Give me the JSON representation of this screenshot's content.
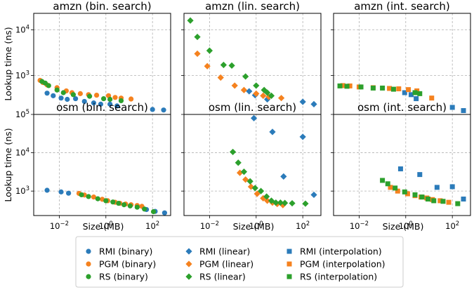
{
  "chart_data": {
    "type": "scatter",
    "xlabel": "Size (MB)",
    "ylabel": "Lookup time (ns)",
    "xscale": "log",
    "yscale": "log",
    "xlim": [
      0.0008,
      600
    ],
    "grid": true,
    "legend_position": "bottom",
    "legend_columns": 3,
    "rows": [
      {
        "ylim": [
          140,
          23000
        ],
        "yticks": [
          {
            "v": 1000,
            "label": "10",
            "exp": "3"
          },
          {
            "v": 10000,
            "label": "10",
            "exp": "4"
          }
        ]
      },
      {
        "ylim": [
          230,
          100000
        ],
        "yticks": [
          {
            "v": 1000,
            "label": "10",
            "exp": "3"
          },
          {
            "v": 10000,
            "label": "10",
            "exp": "4"
          },
          {
            "v": 100000,
            "label": "10",
            "exp": "5"
          }
        ]
      }
    ],
    "xticks": [
      {
        "v": 0.01,
        "label": "10",
        "exp": "−2"
      },
      {
        "v": 1,
        "label": "10",
        "exp": "0"
      },
      {
        "v": 100,
        "label": "10",
        "exp": "2"
      }
    ],
    "colors": {
      "RMI": "#2b7bba",
      "PGM": "#f5821f",
      "RS": "#2ca02c"
    },
    "legend": [
      {
        "label": "RMI (binary)",
        "model": "RMI",
        "marker": "circle"
      },
      {
        "label": "PGM (binary)",
        "model": "PGM",
        "marker": "circle"
      },
      {
        "label": "RS (binary)",
        "model": "RS",
        "marker": "circle"
      },
      {
        "label": "RMI (linear)",
        "model": "RMI",
        "marker": "diamond"
      },
      {
        "label": "PGM (linear)",
        "model": "PGM",
        "marker": "diamond"
      },
      {
        "label": "RS (linear)",
        "model": "RS",
        "marker": "diamond"
      },
      {
        "label": "RMI (interpolation)",
        "model": "RMI",
        "marker": "square"
      },
      {
        "label": "PGM (interpolation)",
        "model": "PGM",
        "marker": "square"
      },
      {
        "label": "RS (interpolation)",
        "model": "RS",
        "marker": "square"
      }
    ],
    "panels": [
      {
        "title": "amzn (bin. search)",
        "row": 0,
        "col": 0,
        "marker": "circle",
        "series": [
          {
            "model": "RMI",
            "points": [
              [
                0.003,
                410
              ],
              [
                0.0055,
                360
              ],
              [
                0.012,
                320
              ],
              [
                0.022,
                300
              ],
              [
                0.05,
                310
              ],
              [
                0.12,
                270
              ],
              [
                0.3,
                250
              ],
              [
                0.6,
                235
              ],
              [
                1.5,
                235
              ],
              [
                3,
                215
              ],
              [
                100,
                180
              ],
              [
                300,
                175
              ]
            ]
          },
          {
            "model": "PGM",
            "points": [
              [
                0.0015,
                780
              ],
              [
                0.002,
                700
              ],
              [
                0.003,
                620
              ],
              [
                0.008,
                540
              ],
              [
                0.02,
                460
              ],
              [
                0.035,
                420
              ],
              [
                0.08,
                400
              ],
              [
                0.18,
                380
              ],
              [
                0.4,
                370
              ],
              [
                1.3,
                360
              ],
              [
                2.5,
                330
              ],
              [
                4.5,
                320
              ],
              [
                12,
                305
              ]
            ]
          },
          {
            "model": "RS",
            "points": [
              [
                0.0018,
                740
              ],
              [
                0.0025,
                680
              ],
              [
                0.0035,
                600
              ],
              [
                0.008,
                480
              ],
              [
                0.015,
                420
              ],
              [
                0.04,
                380
              ],
              [
                0.2,
                350
              ],
              [
                0.8,
                310
              ],
              [
                1.5,
                300
              ],
              [
                4.5,
                280
              ]
            ]
          }
        ]
      },
      {
        "title": "amzn (lin. search)",
        "row": 0,
        "col": 1,
        "marker": "diamond",
        "series": [
          {
            "model": "RMI",
            "points": [
              [
                0.5,
                450
              ],
              [
                0.9,
                370
              ],
              [
                3,
                300
              ],
              [
                100,
                265
              ],
              [
                300,
                235
              ]
            ]
          },
          {
            "model": "PGM",
            "points": [
              [
                0.003,
                3000
              ],
              [
                0.008,
                1600
              ],
              [
                0.03,
                900
              ],
              [
                0.12,
                600
              ],
              [
                0.3,
                480
              ],
              [
                1,
                400
              ],
              [
                2,
                360
              ],
              [
                3.5,
                340
              ],
              [
                12,
                320
              ]
            ]
          },
          {
            "model": "RS",
            "points": [
              [
                0.0015,
                16000
              ],
              [
                0.003,
                7000
              ],
              [
                0.01,
                3500
              ],
              [
                0.04,
                1700
              ],
              [
                0.09,
                1650
              ],
              [
                0.35,
                950
              ],
              [
                1,
                600
              ],
              [
                2.2,
                480
              ],
              [
                3,
                420
              ],
              [
                4.5,
                360
              ]
            ]
          }
        ]
      },
      {
        "title": "amzn (int. search)",
        "row": 0,
        "col": 2,
        "marker": "square",
        "series": [
          {
            "model": "RMI",
            "points": [
              [
                0.9,
                420
              ],
              [
                1.7,
                380
              ],
              [
                2.8,
                310
              ],
              [
                100,
                200
              ],
              [
                300,
                170
              ]
            ]
          },
          {
            "model": "PGM",
            "points": [
              [
                0.002,
                600
              ],
              [
                0.004,
                590
              ],
              [
                0.01,
                560
              ],
              [
                0.04,
                540
              ],
              [
                0.2,
                520
              ],
              [
                0.5,
                510
              ],
              [
                1.3,
                490
              ],
              [
                3,
                460
              ],
              [
                13,
                320
              ]
            ]
          },
          {
            "model": "RS",
            "points": [
              [
                0.0015,
                590
              ],
              [
                0.003,
                580
              ],
              [
                0.012,
                560
              ],
              [
                0.04,
                530
              ],
              [
                0.1,
                530
              ],
              [
                0.3,
                500
              ],
              [
                2.5,
                420
              ],
              [
                4,
                400
              ]
            ]
          }
        ]
      },
      {
        "title": "osm (bin. search)",
        "row": 1,
        "col": 0,
        "marker": "circle",
        "series": [
          {
            "model": "RMI",
            "points": [
              [
                0.003,
                1050
              ],
              [
                0.012,
                950
              ],
              [
                0.025,
                880
              ],
              [
                55,
                330
              ],
              [
                130,
                295
              ],
              [
                330,
                270
              ]
            ]
          },
          {
            "model": "PGM",
            "points": [
              [
                0.07,
                870
              ],
              [
                0.12,
                790
              ],
              [
                0.3,
                700
              ],
              [
                0.7,
                610
              ],
              [
                1.2,
                560
              ],
              [
                2.5,
                510
              ],
              [
                4,
                480
              ],
              [
                7,
                460
              ],
              [
                12,
                440
              ],
              [
                22,
                420
              ],
              [
                35,
                400
              ]
            ]
          },
          {
            "model": "RS",
            "points": [
              [
                0.09,
                800
              ],
              [
                0.18,
                720
              ],
              [
                0.45,
                630
              ],
              [
                1,
                560
              ],
              [
                2,
                520
              ],
              [
                3.5,
                480
              ],
              [
                6,
                440
              ],
              [
                11,
                410
              ],
              [
                22,
                380
              ],
              [
                45,
                340
              ],
              [
                110,
                290
              ]
            ]
          }
        ]
      },
      {
        "title": "osm (lin. search)",
        "row": 1,
        "col": 1,
        "marker": "diamond",
        "series": [
          {
            "model": "RMI",
            "points": [
              [
                0.8,
                80000
              ],
              [
                5,
                35000
              ],
              [
                100,
                26000
              ],
              [
                15,
                2400
              ],
              [
                300,
                800
              ]
            ]
          },
          {
            "model": "PGM",
            "points": [
              [
                0.2,
                3000
              ],
              [
                0.35,
                2000
              ],
              [
                0.6,
                1300
              ],
              [
                1.1,
                850
              ],
              [
                2,
                650
              ],
              [
                3,
                560
              ],
              [
                5,
                500
              ],
              [
                8,
                460
              ],
              [
                14,
                430
              ]
            ]
          },
          {
            "model": "RS",
            "points": [
              [
                0.1,
                10500
              ],
              [
                0.17,
                5500
              ],
              [
                0.3,
                3200
              ],
              [
                0.55,
                1800
              ],
              [
                0.9,
                1200
              ],
              [
                1.6,
                1000
              ],
              [
                2.8,
                720
              ],
              [
                4.5,
                560
              ],
              [
                7,
                500
              ],
              [
                11,
                500
              ],
              [
                17,
                490
              ],
              [
                35,
                480
              ],
              [
                130,
                470
              ]
            ]
          }
        ]
      },
      {
        "title": "osm (int. search)",
        "row": 1,
        "col": 2,
        "marker": "square",
        "series": [
          {
            "model": "RMI",
            "points": [
              [
                0.6,
                3800
              ],
              [
                4,
                2700
              ],
              [
                22,
                1250
              ],
              [
                100,
                1300
              ],
              [
                300,
                620
              ]
            ]
          },
          {
            "model": "PGM",
            "points": [
              [
                0.22,
                1250
              ],
              [
                0.45,
                1000
              ],
              [
                1.2,
                850
              ],
              [
                2.5,
                760
              ],
              [
                4.5,
                700
              ],
              [
                8,
                660
              ],
              [
                14,
                600
              ],
              [
                30,
                560
              ],
              [
                70,
                510
              ]
            ]
          },
          {
            "model": "RS",
            "points": [
              [
                0.1,
                1900
              ],
              [
                0.17,
                1550
              ],
              [
                0.35,
                1200
              ],
              [
                0.9,
                950
              ],
              [
                2.5,
                800
              ],
              [
                5,
                700
              ],
              [
                9,
                620
              ],
              [
                16,
                560
              ],
              [
                40,
                540
              ],
              [
                170,
                470
              ]
            ]
          }
        ]
      }
    ]
  }
}
